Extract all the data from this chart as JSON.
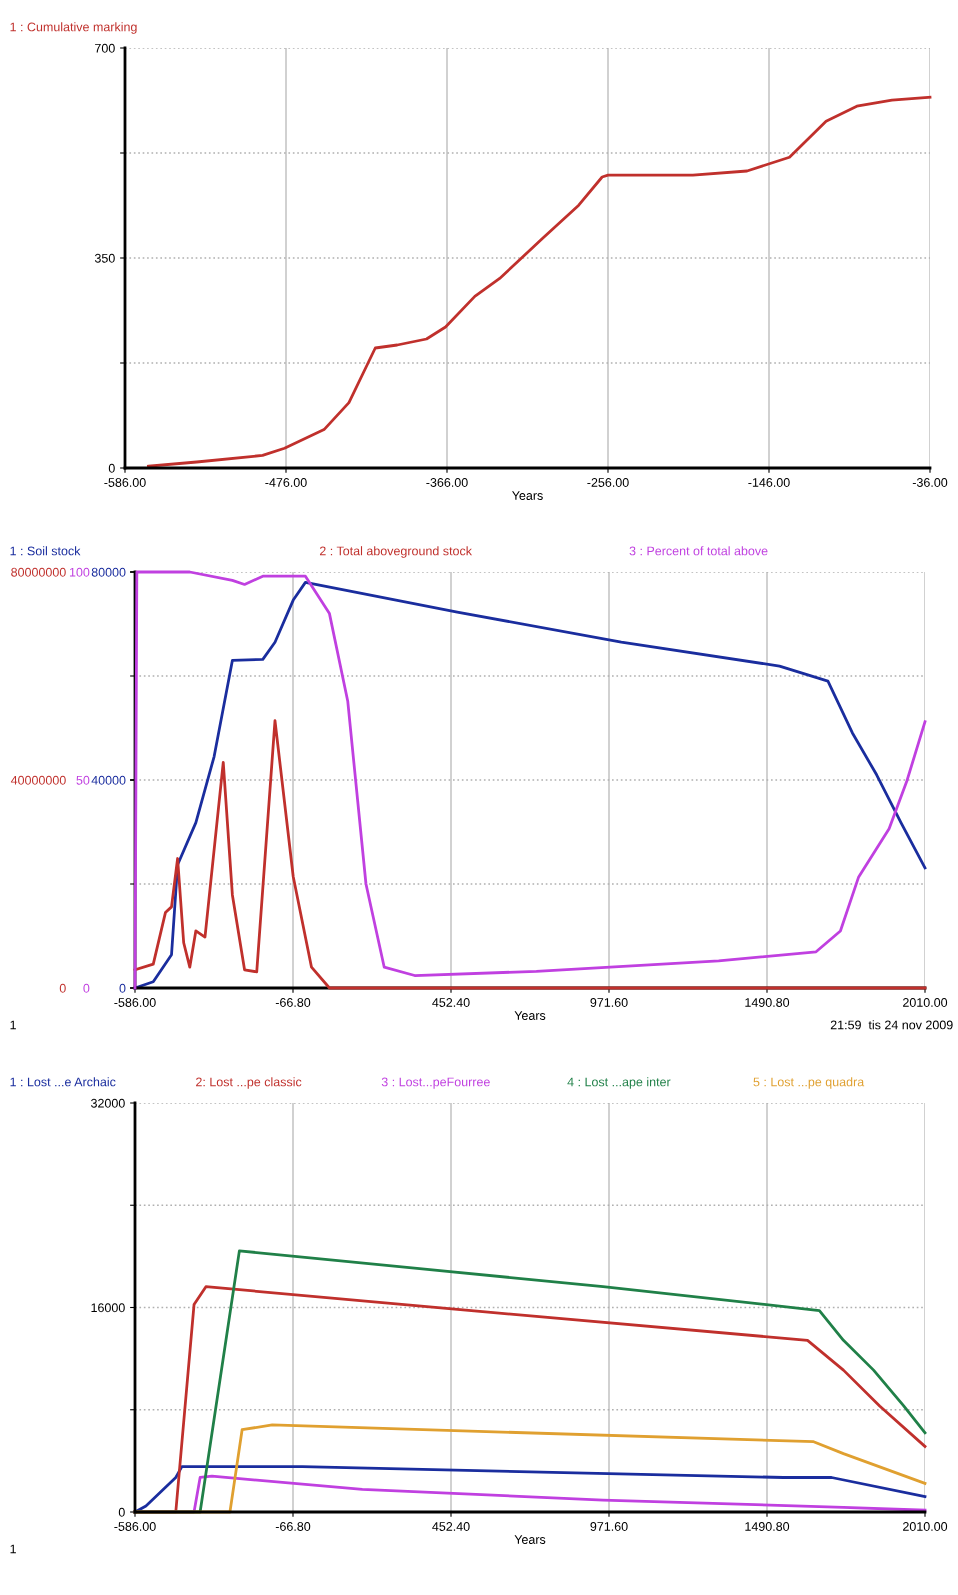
{
  "chart_data": [
    {
      "type": "line",
      "xlabel": "Years",
      "legend": "top left",
      "grid": true,
      "xlim": [
        -586,
        -36
      ],
      "ylim": [
        0,
        700
      ],
      "xticks": [
        {
          "value": -586,
          "label": "-586.00"
        },
        {
          "value": -476,
          "label": "-476.00"
        },
        {
          "value": -366,
          "label": "-366.00"
        },
        {
          "value": -256,
          "label": "-256.00"
        },
        {
          "value": -146,
          "label": "-146.00"
        },
        {
          "value": -36,
          "label": "-36.00"
        }
      ],
      "yticks": [
        0,
        {
          "value": 175,
          "label": null
        },
        350,
        {
          "value": 525,
          "label": null
        },
        700
      ],
      "series": [
        {
          "name": "1 : Cumulative marking",
          "color": "#c0302c",
          "x": [
            -570,
            -537,
            -492,
            -477,
            -450,
            -433,
            -415,
            -400,
            -380,
            -367,
            -347,
            -330,
            -301,
            -276,
            -260,
            -256,
            -198,
            -161,
            -132,
            -107,
            -86,
            -62,
            -36
          ],
          "values": [
            3,
            10,
            21,
            33,
            64,
            109,
            200,
            205,
            215,
            235,
            286,
            316,
            382,
            438,
            485,
            488,
            488,
            495,
            518,
            578,
            603,
            613,
            618
          ]
        }
      ]
    },
    {
      "type": "line",
      "xlabel": "Years",
      "legend": "top",
      "grid": true,
      "xlim": [
        -586,
        2010
      ],
      "ylim": [
        0,
        80000
      ],
      "y2lim": [
        0,
        80000000
      ],
      "y3lim": [
        0,
        100
      ],
      "xticks": [
        {
          "value": -586,
          "label": "-586.00"
        },
        {
          "value": -66.8,
          "label": "-66.80"
        },
        {
          "value": 452.4,
          "label": "452.40"
        },
        {
          "value": 971.6,
          "label": "971.60"
        },
        {
          "value": 1490.8,
          "label": "1490.80"
        },
        {
          "value": 2010,
          "label": "2010.00"
        }
      ],
      "yticks": [
        0,
        {
          "value": 20000,
          "label": null
        },
        40000,
        {
          "value": 60000,
          "label": null
        },
        80000
      ],
      "y2ticks": [
        0,
        40000000,
        80000000
      ],
      "y3ticks": [
        0,
        50,
        100
      ],
      "annotations": [
        "1",
        "21:59  tis 24 nov 2009"
      ],
      "series": [
        {
          "name": "1 : Soil stock",
          "color": "#1a2d9e",
          "axis": "y",
          "x": [
            -586,
            -526,
            -466,
            -446,
            -386,
            -326,
            -266,
            -166,
            -126,
            -66,
            -26,
            473,
            1012,
            1532,
            1691,
            1771,
            1851,
            1931,
            2010
          ],
          "values": [
            0,
            1200,
            6400,
            23700,
            31800,
            44500,
            63000,
            63200,
            66500,
            74600,
            78000,
            72300,
            66500,
            61900,
            59000,
            49100,
            41000,
            31800,
            23100
          ]
        },
        {
          "name": "2 : Total aboveground stock",
          "color": "#c0302c",
          "axis": "y2",
          "x": [
            -586,
            -526,
            -486,
            -466,
            -446,
            -426,
            -406,
            -386,
            -356,
            -296,
            -266,
            -226,
            -186,
            -126,
            -66,
            -6,
            53,
            2010
          ],
          "values": [
            3500000,
            4600000,
            14500000,
            15600000,
            24900000,
            8700000,
            4000000,
            11000000,
            9800000,
            43400000,
            17900000,
            3500000,
            3100000,
            51400000,
            21400000,
            4000000,
            0,
            0
          ]
        },
        {
          "name": "3 : Percent of total above",
          "color": "#c040e0",
          "axis": "y3",
          "x": [
            -586,
            -580,
            -406,
            -266,
            -226,
            -166,
            -26,
            53,
            113,
            173,
            233,
            333,
            733,
            1332,
            1652,
            1732,
            1792,
            1892,
            1951,
            2010
          ],
          "values": [
            0,
            100,
            100,
            98,
            97,
            99,
            99,
            90,
            69,
            25,
            5,
            3,
            4,
            6.5,
            8.7,
            13.7,
            26.7,
            38.3,
            49.9,
            64
          ]
        }
      ]
    },
    {
      "type": "line",
      "xlabel": "Years",
      "legend": "top",
      "grid": true,
      "xlim": [
        -586,
        2010
      ],
      "ylim": [
        0,
        32000
      ],
      "xticks": [
        {
          "value": -586,
          "label": "-586.00"
        },
        {
          "value": -66.8,
          "label": "-66.80"
        },
        {
          "value": 452.4,
          "label": "452.40"
        },
        {
          "value": 971.6,
          "label": "971.60"
        },
        {
          "value": 1490.8,
          "label": "1490.80"
        },
        {
          "value": 2010,
          "label": "2010.00"
        }
      ],
      "yticks": [
        0,
        {
          "value": 8000,
          "label": null
        },
        16000,
        {
          "value": 24000,
          "label": null
        },
        32000
      ],
      "annotations": [
        "1"
      ],
      "series": [
        {
          "name": "1 : Lost ...e Archaic",
          "color": "#1a2d9e",
          "x": [
            -586,
            -550,
            -452,
            -432,
            -36,
            1545,
            1703,
            2010
          ],
          "values": [
            0,
            470,
            2700,
            3550,
            3550,
            2700,
            2700,
            1210
          ]
        },
        {
          "name": "2: Lost ...pe classic",
          "color": "#c0302c",
          "x": [
            -586,
            -452,
            -392,
            -353,
            556,
            1624,
            1742,
            1861,
            2010
          ],
          "values": [
            0,
            0,
            16230,
            17630,
            15670,
            13430,
            11100,
            8300,
            5130
          ]
        },
        {
          "name": "3 : Lost...peFourree",
          "color": "#c040e0",
          "x": [
            -586,
            -392,
            -372,
            -333,
            161,
            952,
            1742,
            2010
          ],
          "values": [
            0,
            0,
            2700,
            2800,
            1770,
            930,
            370,
            140
          ]
        },
        {
          "name": "4 : Lost ...ape inter",
          "color": "#208048",
          "x": [
            -586,
            -372,
            -243,
            952,
            1663,
            1742,
            1841,
            1940,
            2010
          ],
          "values": [
            0,
            0,
            20430,
            17630,
            15760,
            13430,
            11100,
            8300,
            6200
          ]
        },
        {
          "name": "5 : Lost ...pe quadra",
          "color": "#e0a030",
          "x": [
            -586,
            -274,
            -234,
            -135,
            1644,
            1742,
            2010
          ],
          "values": [
            0,
            0,
            6440,
            6810,
            5500,
            4570,
            2240
          ]
        }
      ]
    }
  ]
}
